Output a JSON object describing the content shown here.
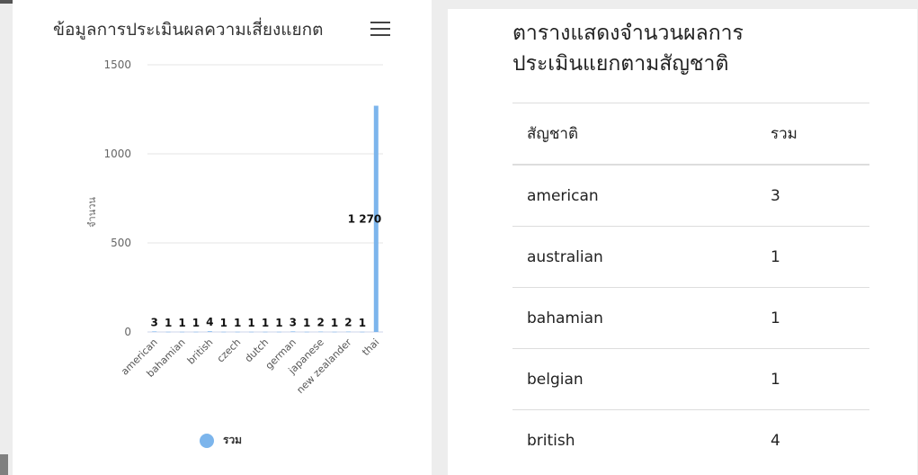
{
  "chart_panel": {
    "title": "ข้อมูลการประเมินผลความเสี่ยงแยกต",
    "menu_icon": "hamburger-menu-icon",
    "legend_label": "รวม",
    "series_color": "#7cb5ec"
  },
  "chart_data": {
    "type": "bar",
    "title": "ข้อมูลการประเมินผลความเสี่ยงแยกต",
    "ylabel": "จำนวน",
    "ylim": [
      0,
      1500
    ],
    "yticks": [
      "0",
      "500",
      "1000",
      "1500"
    ],
    "grid": true,
    "legend": "bottom-center",
    "x_tick_labels": [
      "american",
      "bahamian",
      "british",
      "czech",
      "dutch",
      "german",
      "japanese",
      "new zealander",
      "thai"
    ],
    "series": [
      {
        "name": "รวม",
        "values": [
          3,
          1,
          1,
          1,
          4,
          1,
          1,
          1,
          1,
          1,
          3,
          1,
          2,
          1,
          2,
          1,
          1270
        ]
      }
    ],
    "data_labels": [
      "3",
      "1",
      "1",
      "1",
      "4",
      "1",
      "1",
      "1",
      "1",
      "1",
      "3",
      "1",
      "2",
      "1",
      "2",
      "1",
      "1 270"
    ]
  },
  "table_panel": {
    "title_line1": "ตารางแสดงจำนวนผลการ",
    "title_line2": "ประเมินแยกตามสัญชาติ",
    "columns": [
      "สัญชาติ",
      "รวม"
    ],
    "rows": [
      {
        "nationality": "american",
        "total": "3"
      },
      {
        "nationality": "australian",
        "total": "1"
      },
      {
        "nationality": "bahamian",
        "total": "1"
      },
      {
        "nationality": "belgian",
        "total": "1"
      },
      {
        "nationality": "british",
        "total": "4"
      }
    ]
  }
}
